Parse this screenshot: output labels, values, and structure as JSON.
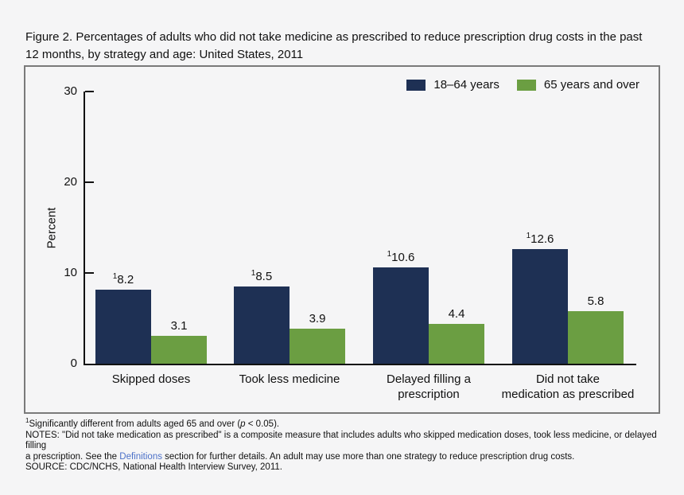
{
  "figure_title": {
    "line1": "Figure 2. Percentages of adults who did not take medicine as prescribed to reduce prescription drug costs in the past",
    "line2": "12 months, by strategy and age: United States, 2011"
  },
  "chart_data": {
    "type": "bar",
    "title": "Percentages of adults who did not take medicine as prescribed to reduce prescription drug costs in the past 12 months, by strategy and age: United States, 2011",
    "categories": [
      "Skipped doses",
      "Took less medicine",
      "Delayed filling a prescription",
      "Did not take medication as prescribed"
    ],
    "category_lines": [
      [
        "Skipped doses"
      ],
      [
        "Took less medicine"
      ],
      [
        "Delayed filling a",
        "prescription"
      ],
      [
        "Did not take",
        "medication as prescribed"
      ]
    ],
    "series": [
      {
        "name": "18–64 years",
        "color": "#1e3054",
        "values": [
          8.2,
          8.5,
          10.6,
          12.6
        ],
        "significant": [
          true,
          true,
          true,
          true
        ]
      },
      {
        "name": "65 years and over",
        "color": "#6b9e42",
        "values": [
          3.1,
          3.9,
          4.4,
          5.8
        ],
        "significant": [
          false,
          false,
          false,
          false
        ]
      }
    ],
    "significance_marker": "1",
    "ylabel": "Percent",
    "xlabel": "",
    "yticks": [
      0,
      10,
      20,
      30
    ],
    "ylim": [
      0,
      30
    ],
    "grid": false,
    "legend_position": "top-right"
  },
  "colors": {
    "series_18_64": "#1e3054",
    "series_65_over": "#6b9e42",
    "background": "#f5f5f6",
    "panel_border": "#7a7a7a",
    "axis": "#111111",
    "link": "#4b70c8"
  },
  "footnotes": {
    "fn1_marker": "1",
    "fn1_pre": "Significantly different from adults aged 65 and over (",
    "fn1_var": "p",
    "fn1_post": " < 0.05).",
    "notes_line1": "NOTES: \"Did not take medication as prescribed\" is a composite measure that includes adults who skipped medication doses, took less medicine, or delayed filling",
    "notes_line2_before": "a prescription. See the ",
    "notes_link": "Definitions",
    "notes_line2_after": " section for further details. An adult may use more than one strategy to reduce prescription drug costs.",
    "source": "SOURCE: CDC/NCHS, National Health Interview Survey, 2011."
  }
}
